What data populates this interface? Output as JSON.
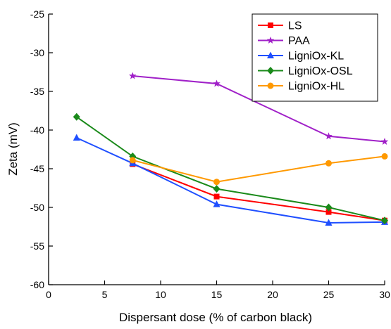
{
  "chart_data": {
    "type": "line",
    "title": "",
    "xlabel": "Dispersant dose (% of carbon black)",
    "ylabel": "Zeta (mV)",
    "xlim": [
      0,
      30
    ],
    "ylim": [
      -60,
      -25
    ],
    "xticks": [
      0,
      5,
      10,
      15,
      20,
      25,
      30
    ],
    "yticks": [
      -60,
      -55,
      -50,
      -45,
      -40,
      -35,
      -30,
      -25
    ],
    "grid": false,
    "legend_position": "top-right",
    "series": [
      {
        "name": "LS",
        "color": "#ff0000",
        "marker": "square",
        "x": [
          7.5,
          15,
          25,
          30
        ],
        "y": [
          -44.4,
          -48.6,
          -50.6,
          -51.7
        ]
      },
      {
        "name": "PAA",
        "color": "#a020c8",
        "marker": "star",
        "x": [
          7.5,
          15,
          25,
          30
        ],
        "y": [
          -33.0,
          -34.0,
          -40.8,
          -41.5
        ]
      },
      {
        "name": "LigniOx-KL",
        "color": "#1f4fff",
        "marker": "triangle",
        "x": [
          2.5,
          7.5,
          15,
          25,
          30
        ],
        "y": [
          -41.0,
          -44.3,
          -49.6,
          -52.0,
          -51.9
        ]
      },
      {
        "name": "LigniOx-OSL",
        "color": "#1a8a1a",
        "marker": "diamond",
        "x": [
          2.5,
          7.5,
          15,
          25,
          30
        ],
        "y": [
          -38.3,
          -43.4,
          -47.6,
          -50.0,
          -51.7
        ]
      },
      {
        "name": "LigniOx-HL",
        "color": "#ff9900",
        "marker": "circle",
        "x": [
          7.5,
          15,
          25,
          30
        ],
        "y": [
          -43.9,
          -46.7,
          -44.3,
          -43.4
        ]
      }
    ]
  }
}
